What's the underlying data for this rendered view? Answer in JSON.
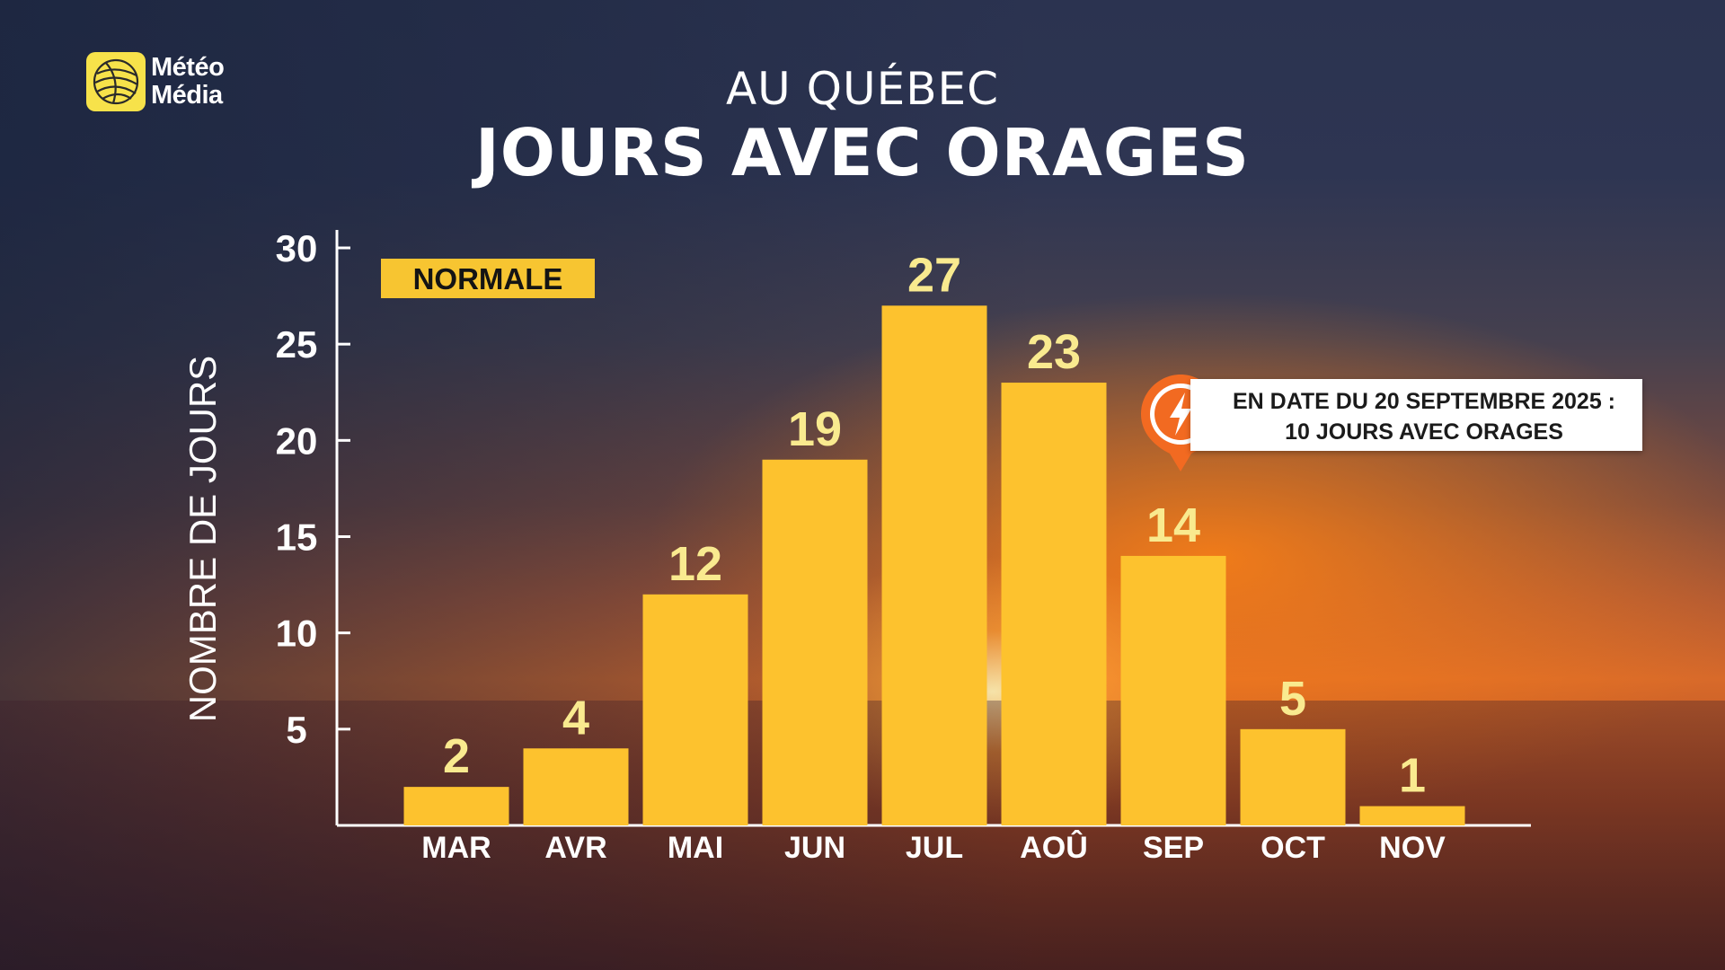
{
  "brand": {
    "name_line1": "Météo",
    "name_line2": "Média",
    "badge_color": "#f7e24a"
  },
  "header": {
    "subtitle": "AU QUÉBEC",
    "title": "JOURS AVEC ORAGES"
  },
  "legend": {
    "label": "NORMALE",
    "color": "#f7c531"
  },
  "annotation": {
    "line1": "EN DATE DU 20 SEPTEMBRE 2025 :",
    "line2": "10 JOURS AVEC ORAGES",
    "icon": "lightning-pin-icon",
    "accent_color": "#f26a21"
  },
  "chart_data": {
    "type": "bar",
    "title": "JOURS AVEC ORAGES",
    "subtitle": "AU QUÉBEC",
    "xlabel": "",
    "ylabel": "NOMBRE DE JOURS",
    "categories": [
      "MAR",
      "AVR",
      "MAI",
      "JUN",
      "JUL",
      "AOÛ",
      "SEP",
      "OCT",
      "NOV"
    ],
    "series": [
      {
        "name": "NORMALE",
        "values": [
          2,
          4,
          12,
          19,
          27,
          23,
          14,
          5,
          1
        ],
        "color": "#fdc22e"
      }
    ],
    "ylim": [
      0,
      30
    ],
    "yticks": [
      5,
      10,
      15,
      20,
      25,
      30
    ],
    "grid": false,
    "legend_position": "top-left",
    "value_label_color": "#f9ea8f"
  }
}
